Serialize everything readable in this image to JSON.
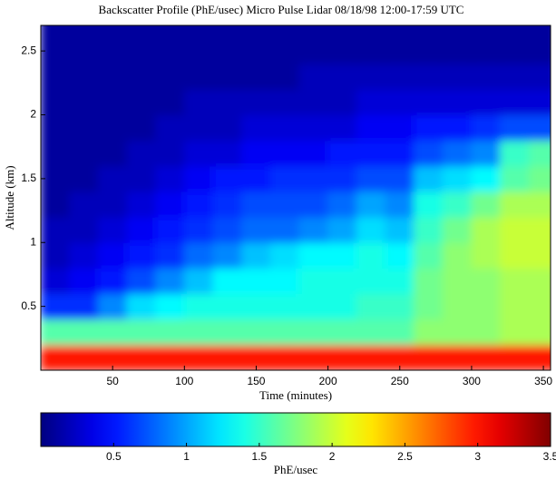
{
  "chart_data": {
    "type": "heatmap",
    "title": "Backscatter Profile (PhE/usec) Micro Pulse Lidar 08/18/98 12:00-17:59 UTC",
    "x_label": "Time (minutes)",
    "y_label": "Altitude (km)",
    "colorbar_label": "PhE/usec",
    "x": [
      10,
      30,
      50,
      70,
      90,
      110,
      130,
      150,
      170,
      190,
      210,
      230,
      250,
      270,
      290,
      310,
      330,
      350
    ],
    "y": [
      0.1,
      0.3,
      0.5,
      0.7,
      0.9,
      1.1,
      1.3,
      1.5,
      1.7,
      1.9,
      2.1,
      2.3,
      2.5,
      2.7
    ],
    "z": [
      [
        3.0,
        3.0,
        3.0,
        3.0,
        3.0,
        3.0,
        3.0,
        3.0,
        3.0,
        3.0,
        3.0,
        3.0,
        3.0,
        3.0,
        3.0,
        3.0,
        3.0,
        3.0
      ],
      [
        1.6,
        1.6,
        1.6,
        1.6,
        1.6,
        1.6,
        1.6,
        1.6,
        1.6,
        1.6,
        1.6,
        1.6,
        1.6,
        1.8,
        1.8,
        1.8,
        1.9,
        1.9
      ],
      [
        0.6,
        0.6,
        0.9,
        1.2,
        1.3,
        1.4,
        1.4,
        1.4,
        1.4,
        1.4,
        1.4,
        1.5,
        1.5,
        1.7,
        1.8,
        1.8,
        1.9,
        1.9
      ],
      [
        0.3,
        0.4,
        0.5,
        0.7,
        0.9,
        1.1,
        1.3,
        1.3,
        1.3,
        1.4,
        1.4,
        1.4,
        1.4,
        1.7,
        1.8,
        1.8,
        1.9,
        1.9
      ],
      [
        0.2,
        0.3,
        0.4,
        0.5,
        0.6,
        0.8,
        0.9,
        1.1,
        1.2,
        1.3,
        1.3,
        1.4,
        1.3,
        1.6,
        1.8,
        1.9,
        2.0,
        2.0
      ],
      [
        0.2,
        0.2,
        0.3,
        0.4,
        0.5,
        0.6,
        0.7,
        0.8,
        0.8,
        0.9,
        1.0,
        1.2,
        1.1,
        1.5,
        1.7,
        1.9,
        2.0,
        2.0
      ],
      [
        0.1,
        0.2,
        0.2,
        0.3,
        0.4,
        0.5,
        0.6,
        0.7,
        0.7,
        0.7,
        0.8,
        1.0,
        0.9,
        1.4,
        1.5,
        1.7,
        1.9,
        1.9
      ],
      [
        0.1,
        0.1,
        0.2,
        0.2,
        0.3,
        0.4,
        0.5,
        0.5,
        0.6,
        0.6,
        0.6,
        0.7,
        0.7,
        1.1,
        1.2,
        1.3,
        1.6,
        1.7
      ],
      [
        0.1,
        0.1,
        0.1,
        0.2,
        0.2,
        0.3,
        0.3,
        0.4,
        0.4,
        0.4,
        0.5,
        0.5,
        0.5,
        0.7,
        0.8,
        0.9,
        1.5,
        1.6
      ],
      [
        0.1,
        0.1,
        0.1,
        0.1,
        0.2,
        0.2,
        0.2,
        0.3,
        0.3,
        0.3,
        0.3,
        0.4,
        0.4,
        0.5,
        0.5,
        0.6,
        0.7,
        0.7
      ],
      [
        0.1,
        0.1,
        0.1,
        0.1,
        0.1,
        0.2,
        0.2,
        0.2,
        0.2,
        0.2,
        0.2,
        0.3,
        0.3,
        0.3,
        0.3,
        0.3,
        0.3,
        0.3
      ],
      [
        0.1,
        0.1,
        0.1,
        0.1,
        0.1,
        0.1,
        0.1,
        0.1,
        0.1,
        0.2,
        0.2,
        0.2,
        0.2,
        0.2,
        0.2,
        0.2,
        0.2,
        0.2
      ],
      [
        0.1,
        0.1,
        0.1,
        0.1,
        0.1,
        0.1,
        0.1,
        0.1,
        0.1,
        0.1,
        0.1,
        0.1,
        0.1,
        0.1,
        0.1,
        0.1,
        0.1,
        0.1
      ],
      [
        0.1,
        0.1,
        0.1,
        0.1,
        0.1,
        0.1,
        0.1,
        0.1,
        0.1,
        0.1,
        0.1,
        0.1,
        0.1,
        0.1,
        0.1,
        0.1,
        0.1,
        0.1
      ]
    ],
    "xlim": [
      0,
      355
    ],
    "ylim": [
      0,
      2.7
    ],
    "clim": [
      0,
      3.5
    ],
    "xticks": [
      50,
      100,
      150,
      200,
      250,
      300,
      350
    ],
    "yticks": [
      0.5,
      1,
      1.5,
      2,
      2.5
    ],
    "cticks": [
      0.5,
      1,
      1.5,
      2,
      2.5,
      3,
      3.5
    ],
    "colormap": "jet"
  }
}
